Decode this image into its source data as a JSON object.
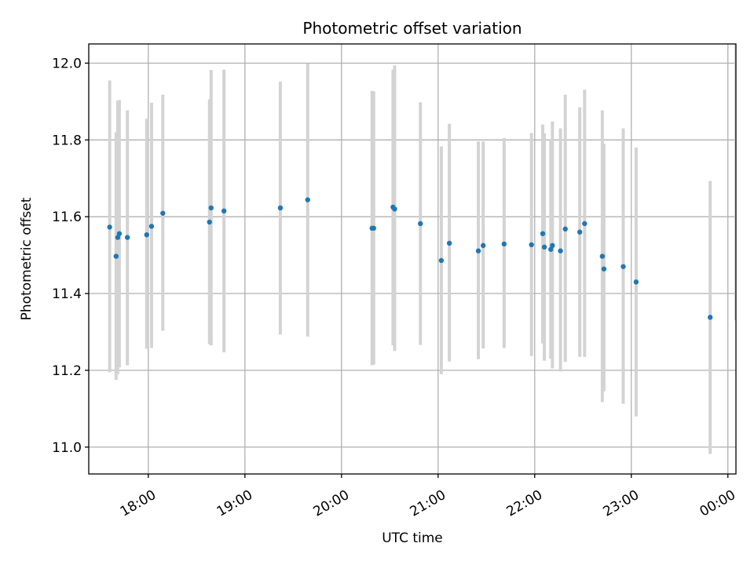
{
  "chart_data": {
    "type": "scatter",
    "title": "Photometric offset variation",
    "xlabel": "UTC time",
    "ylabel": "Photometric offset",
    "x_axis": {
      "kind": "time",
      "range": [
        "17:23",
        "00:05"
      ],
      "ticks": [
        "18:00",
        "19:00",
        "20:00",
        "21:00",
        "22:00",
        "23:00",
        "00:00"
      ]
    },
    "y_axis": {
      "range": [
        10.93,
        12.05
      ],
      "ticks": [
        "11.0",
        "11.2",
        "11.4",
        "11.6",
        "11.8",
        "12.0"
      ]
    },
    "grid": true,
    "colors": {
      "points": "#1f77b4",
      "error_bars": "#d3d3d3"
    },
    "points": [
      {
        "x": "17:36",
        "y": 11.573,
        "low": 11.195,
        "high": 11.955
      },
      {
        "x": "17:40",
        "y": 11.497,
        "low": 11.175,
        "high": 11.82
      },
      {
        "x": "17:41",
        "y": 11.546,
        "low": 11.19,
        "high": 11.902
      },
      {
        "x": "17:42",
        "y": 11.556,
        "low": 11.208,
        "high": 11.904
      },
      {
        "x": "17:47",
        "y": 11.546,
        "low": 11.213,
        "high": 11.877
      },
      {
        "x": "17:59",
        "y": 11.553,
        "low": 11.256,
        "high": 11.855
      },
      {
        "x": "18:02",
        "y": 11.575,
        "low": 11.258,
        "high": 11.897
      },
      {
        "x": "18:09",
        "y": 11.609,
        "low": 11.303,
        "high": 11.918
      },
      {
        "x": "18:38",
        "y": 11.586,
        "low": 11.268,
        "high": 11.906
      },
      {
        "x": "18:39",
        "y": 11.623,
        "low": 11.265,
        "high": 11.982
      },
      {
        "x": "18:47",
        "y": 11.615,
        "low": 11.247,
        "high": 11.983
      },
      {
        "x": "19:22",
        "y": 11.623,
        "low": 11.293,
        "high": 11.952
      },
      {
        "x": "19:39",
        "y": 11.644,
        "low": 11.288,
        "high": 11.999
      },
      {
        "x": "20:19",
        "y": 11.57,
        "low": 11.213,
        "high": 11.928
      },
      {
        "x": "20:20",
        "y": 11.57,
        "low": 11.215,
        "high": 11.926
      },
      {
        "x": "20:32",
        "y": 11.625,
        "low": 11.265,
        "high": 11.983
      },
      {
        "x": "20:33",
        "y": 11.62,
        "low": 11.25,
        "high": 11.994
      },
      {
        "x": "20:49",
        "y": 11.582,
        "low": 11.266,
        "high": 11.898
      },
      {
        "x": "21:02",
        "y": 11.486,
        "low": 11.19,
        "high": 11.783
      },
      {
        "x": "21:07",
        "y": 11.531,
        "low": 11.223,
        "high": 11.842
      },
      {
        "x": "21:25",
        "y": 11.511,
        "low": 11.229,
        "high": 11.796
      },
      {
        "x": "21:28",
        "y": 11.525,
        "low": 11.257,
        "high": 11.796
      },
      {
        "x": "21:41",
        "y": 11.529,
        "low": 11.258,
        "high": 11.805
      },
      {
        "x": "21:58",
        "y": 11.527,
        "low": 11.237,
        "high": 11.818
      },
      {
        "x": "22:05",
        "y": 11.556,
        "low": 11.27,
        "high": 11.84
      },
      {
        "x": "22:06",
        "y": 11.521,
        "low": 11.225,
        "high": 11.817
      },
      {
        "x": "22:10",
        "y": 11.515,
        "low": 11.23,
        "high": 11.8
      },
      {
        "x": "22:11",
        "y": 11.525,
        "low": 11.205,
        "high": 11.848
      },
      {
        "x": "22:16",
        "y": 11.511,
        "low": 11.197,
        "high": 11.83
      },
      {
        "x": "22:19",
        "y": 11.568,
        "low": 11.222,
        "high": 11.918
      },
      {
        "x": "22:28",
        "y": 11.56,
        "low": 11.235,
        "high": 11.885
      },
      {
        "x": "22:31",
        "y": 11.582,
        "low": 11.235,
        "high": 11.931
      },
      {
        "x": "22:42",
        "y": 11.497,
        "low": 11.117,
        "high": 11.877
      },
      {
        "x": "22:43",
        "y": 11.464,
        "low": 11.145,
        "high": 11.79
      },
      {
        "x": "22:55",
        "y": 11.47,
        "low": 11.113,
        "high": 11.83
      },
      {
        "x": "23:03",
        "y": 11.43,
        "low": 11.08,
        "high": 11.78
      },
      {
        "x": "23:49",
        "y": 11.338,
        "low": 10.982,
        "high": 11.693
      },
      {
        "x": "00:05",
        "y": null,
        "low": 11.33,
        "high": 12.06
      }
    ]
  }
}
